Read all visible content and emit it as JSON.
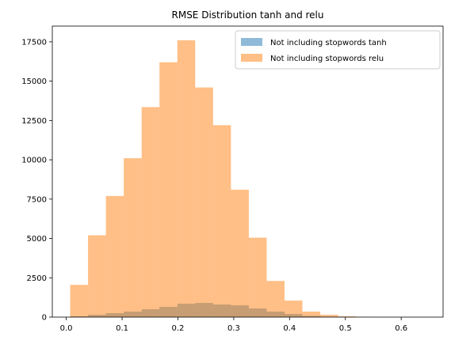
{
  "chart_data": {
    "type": "histogram",
    "title": "RMSE Distribution tanh and relu",
    "xlabel": "",
    "ylabel": "",
    "xlim": [
      -0.025,
      0.675
    ],
    "ylim": [
      0,
      18500
    ],
    "xticks": [
      0.0,
      0.1,
      0.2,
      0.3,
      0.4,
      0.5,
      0.6
    ],
    "xtick_labels": [
      "0.0",
      "0.1",
      "0.2",
      "0.3",
      "0.4",
      "0.5",
      "0.6"
    ],
    "yticks": [
      0,
      2500,
      5000,
      7500,
      10000,
      12500,
      15000,
      17500
    ],
    "ytick_labels": [
      "0",
      "2500",
      "5000",
      "7500",
      "10000",
      "12500",
      "15000",
      "17500"
    ],
    "legend_position": "top-right",
    "series": [
      {
        "name": "Not including stopwords tanh",
        "color": "#1f77b4",
        "alpha": 0.5,
        "bins": [
          {
            "x0": 0.007,
            "x1": 0.039,
            "value": 50
          },
          {
            "x0": 0.039,
            "x1": 0.071,
            "value": 150
          },
          {
            "x0": 0.071,
            "x1": 0.103,
            "value": 250
          },
          {
            "x0": 0.103,
            "x1": 0.135,
            "value": 350
          },
          {
            "x0": 0.135,
            "x1": 0.167,
            "value": 500
          },
          {
            "x0": 0.167,
            "x1": 0.199,
            "value": 650
          },
          {
            "x0": 0.199,
            "x1": 0.231,
            "value": 850
          },
          {
            "x0": 0.231,
            "x1": 0.263,
            "value": 900
          },
          {
            "x0": 0.263,
            "x1": 0.295,
            "value": 800
          },
          {
            "x0": 0.295,
            "x1": 0.327,
            "value": 750
          },
          {
            "x0": 0.327,
            "x1": 0.359,
            "value": 550
          },
          {
            "x0": 0.359,
            "x1": 0.391,
            "value": 350
          },
          {
            "x0": 0.391,
            "x1": 0.423,
            "value": 200
          },
          {
            "x0": 0.423,
            "x1": 0.455,
            "value": 80
          },
          {
            "x0": 0.455,
            "x1": 0.487,
            "value": 30
          }
        ]
      },
      {
        "name": "Not including stopwords relu",
        "color": "#ff7f0e",
        "alpha": 0.5,
        "bins": [
          {
            "x0": 0.007,
            "x1": 0.039,
            "value": 2050
          },
          {
            "x0": 0.039,
            "x1": 0.071,
            "value": 5200
          },
          {
            "x0": 0.071,
            "x1": 0.103,
            "value": 7700
          },
          {
            "x0": 0.103,
            "x1": 0.135,
            "value": 10100
          },
          {
            "x0": 0.135,
            "x1": 0.167,
            "value": 13350
          },
          {
            "x0": 0.167,
            "x1": 0.199,
            "value": 16200
          },
          {
            "x0": 0.199,
            "x1": 0.231,
            "value": 17600
          },
          {
            "x0": 0.231,
            "x1": 0.263,
            "value": 14600
          },
          {
            "x0": 0.263,
            "x1": 0.295,
            "value": 12200
          },
          {
            "x0": 0.295,
            "x1": 0.327,
            "value": 8100
          },
          {
            "x0": 0.327,
            "x1": 0.359,
            "value": 5050
          },
          {
            "x0": 0.359,
            "x1": 0.391,
            "value": 2300
          },
          {
            "x0": 0.391,
            "x1": 0.423,
            "value": 1050
          },
          {
            "x0": 0.423,
            "x1": 0.455,
            "value": 350
          },
          {
            "x0": 0.455,
            "x1": 0.487,
            "value": 150
          },
          {
            "x0": 0.487,
            "x1": 0.519,
            "value": 50
          },
          {
            "x0": 0.519,
            "x1": 0.551,
            "value": 20
          }
        ]
      }
    ]
  }
}
